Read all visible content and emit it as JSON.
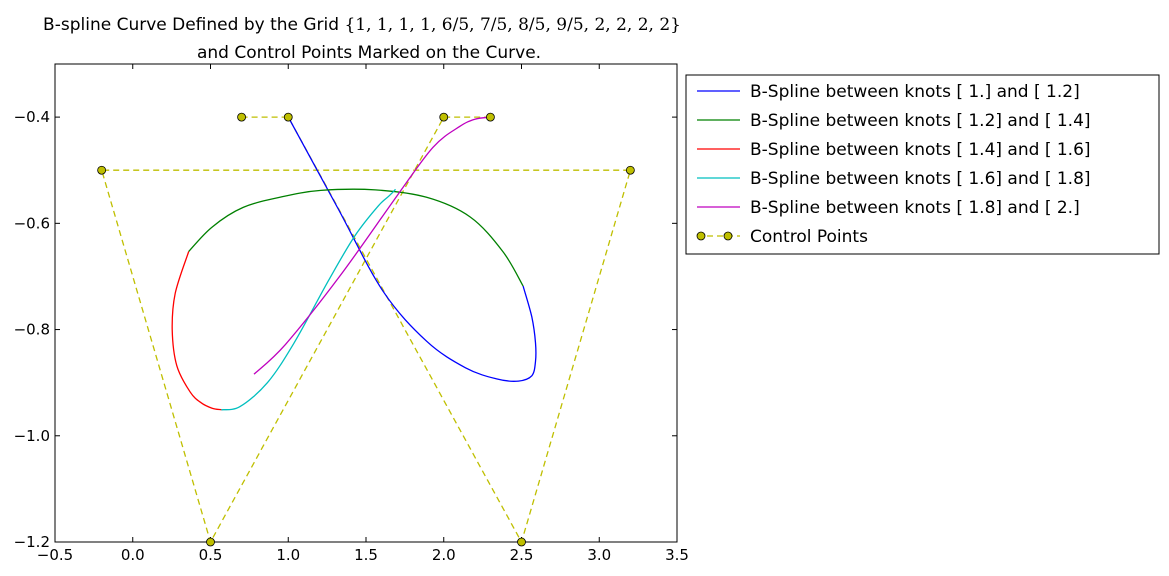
{
  "chart_data": {
    "type": "line",
    "title": {
      "line1_text": "B-spline Curve Defined by the Grid ",
      "line1_math": "{1, 1, 1, 1, 6/5, 7/5, 8/5, 9/5, 2, 2, 2, 2}",
      "line2": "and Control Points Marked on the Curve."
    },
    "xlabel": "",
    "ylabel": "",
    "xlim": [
      -0.5,
      3.5
    ],
    "ylim": [
      -1.2,
      -0.3
    ],
    "xticks": [
      -0.5,
      0.0,
      0.5,
      1.0,
      1.5,
      2.0,
      2.5,
      3.0,
      3.5
    ],
    "xtick_labels": [
      "−0.5",
      "0.0",
      "0.5",
      "1.0",
      "1.5",
      "2.0",
      "2.5",
      "3.0",
      "3.5"
    ],
    "yticks": [
      -0.4,
      -0.6,
      -0.8,
      -1.0,
      -1.2
    ],
    "ytick_labels": [
      "−0.4",
      "−0.6",
      "−0.8",
      "−1.0",
      "−1.2"
    ],
    "grid": false,
    "legend_position": "outside right, top",
    "series": [
      {
        "name": "B-Spline between knots [ 1.] and [ 1.2]",
        "color": "#0000ff",
        "points": [
          [
            1.0,
            -0.4
          ],
          [
            1.32,
            -0.572
          ],
          [
            1.61,
            -0.728
          ],
          [
            1.89,
            -0.822
          ],
          [
            2.14,
            -0.872
          ],
          [
            2.34,
            -0.893
          ],
          [
            2.48,
            -0.897
          ],
          [
            2.566,
            -0.887
          ],
          [
            2.59,
            -0.86
          ],
          [
            2.59,
            -0.825
          ],
          [
            2.566,
            -0.776
          ],
          [
            2.51,
            -0.718
          ]
        ]
      },
      {
        "name": "B-Spline between knots [ 1.2] and [ 1.4]",
        "color": "#008000",
        "points": [
          [
            2.51,
            -0.718
          ],
          [
            2.38,
            -0.653
          ],
          [
            2.17,
            -0.588
          ],
          [
            1.89,
            -0.551
          ],
          [
            1.56,
            -0.537
          ],
          [
            1.21,
            -0.538
          ],
          [
            0.96,
            -0.55
          ],
          [
            0.71,
            -0.57
          ],
          [
            0.51,
            -0.607
          ],
          [
            0.36,
            -0.653
          ]
        ]
      },
      {
        "name": "B-Spline between knots [ 1.4] and [ 1.6]",
        "color": "#ff0000",
        "points": [
          [
            0.36,
            -0.653
          ],
          [
            0.273,
            -0.732
          ],
          [
            0.254,
            -0.8
          ],
          [
            0.283,
            -0.868
          ],
          [
            0.37,
            -0.918
          ],
          [
            0.44,
            -0.938
          ],
          [
            0.51,
            -0.948
          ],
          [
            0.57,
            -0.951
          ]
        ]
      },
      {
        "name": "B-Spline between knots [ 1.6] and [ 1.8]",
        "color": "#00bfbf",
        "points": [
          [
            0.57,
            -0.951
          ],
          [
            0.69,
            -0.945
          ],
          [
            0.866,
            -0.9
          ],
          [
            1.036,
            -0.826
          ],
          [
            1.26,
            -0.707
          ],
          [
            1.43,
            -0.623
          ],
          [
            1.58,
            -0.567
          ],
          [
            1.65,
            -0.548
          ],
          [
            1.69,
            -0.536
          ]
        ]
      },
      {
        "name": "B-Spline between knots [ 1.8] and [ 2.]",
        "color": "#bf00bf",
        "points": [
          [
            0.78,
            -0.884
          ],
          [
            0.982,
            -0.828
          ],
          [
            1.33,
            -0.7
          ],
          [
            1.7,
            -0.548
          ],
          [
            1.93,
            -0.457
          ],
          [
            2.1,
            -0.418
          ],
          [
            2.2,
            -0.404
          ],
          [
            2.3,
            -0.4
          ]
        ]
      }
    ],
    "control_points": {
      "name": "Control Points",
      "color": "#bfbf00",
      "points": [
        [
          0.7,
          -0.4
        ],
        [
          1.0,
          -0.4
        ],
        [
          2.5,
          -1.2
        ],
        [
          3.2,
          -0.5
        ],
        [
          -0.2,
          -0.5
        ],
        [
          0.5,
          -1.2
        ],
        [
          2.0,
          -0.4
        ],
        [
          2.3,
          -0.4
        ]
      ]
    }
  }
}
